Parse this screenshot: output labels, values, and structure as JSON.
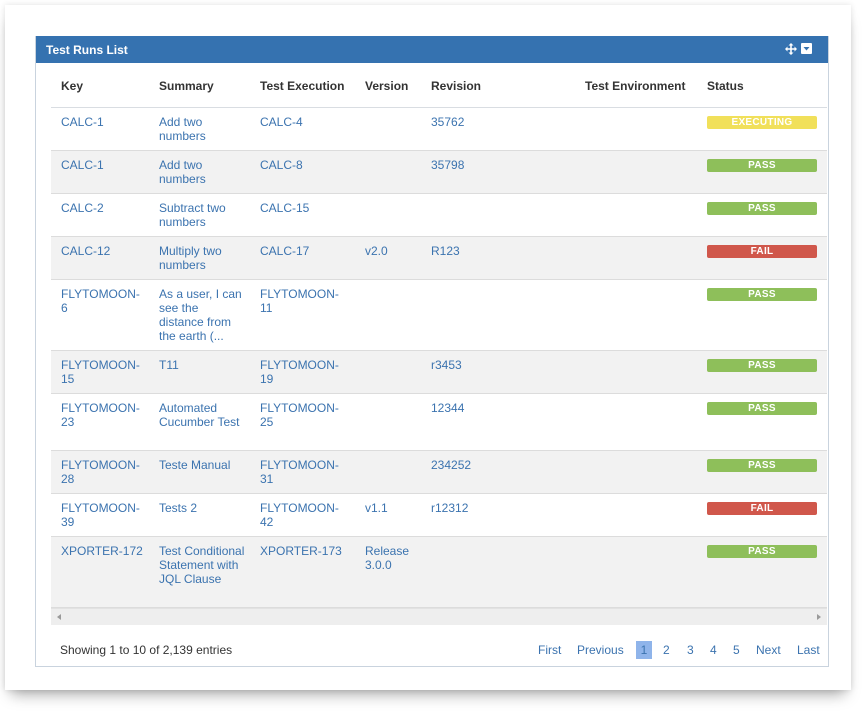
{
  "panel": {
    "title": "Test Runs List"
  },
  "icons": {
    "move": "move-icon",
    "menu": "dropdown-menu-icon"
  },
  "columns": [
    "Key",
    "Summary",
    "Test Execution",
    "Version",
    "Revision",
    "Test Environment",
    "Status"
  ],
  "rows": [
    {
      "key": "CALC-1",
      "summary": "Add two numbers",
      "execution": "CALC-4",
      "version": "",
      "revision": "35762",
      "environment": "",
      "status": "EXECUTING"
    },
    {
      "key": "CALC-1",
      "summary": "Add two numbers",
      "execution": "CALC-8",
      "version": "",
      "revision": "35798",
      "environment": "",
      "status": "PASS"
    },
    {
      "key": "CALC-2",
      "summary": "Subtract two numbers",
      "execution": "CALC-15",
      "version": "",
      "revision": "",
      "environment": "",
      "status": "PASS"
    },
    {
      "key": "CALC-12",
      "summary": "Multiply two numbers",
      "execution": "CALC-17",
      "version": "v2.0",
      "revision": "R123",
      "environment": "",
      "status": "FAIL"
    },
    {
      "key": "FLYTOMOON-6",
      "summary": "As a user, I can see the distance from the earth (...",
      "execution": "FLYTOMOON-11",
      "version": "",
      "revision": "",
      "environment": "",
      "status": "PASS"
    },
    {
      "key": "FLYTOMOON-15",
      "summary": "T11",
      "execution": "FLYTOMOON-19",
      "version": "",
      "revision": "r3453",
      "environment": "",
      "status": "PASS"
    },
    {
      "key": "FLYTOMOON-23",
      "summary": "Automated Cucumber Test",
      "execution": "FLYTOMOON-25",
      "version": "",
      "revision": "12344",
      "environment": "",
      "status": "PASS"
    },
    {
      "key": "FLYTOMOON-28",
      "summary": "Teste Manual",
      "execution": "FLYTOMOON-31",
      "version": "",
      "revision": "234252",
      "environment": "",
      "status": "PASS"
    },
    {
      "key": "FLYTOMOON-39",
      "summary": "Tests 2",
      "execution": "FLYTOMOON-42",
      "version": "v1.1",
      "revision": "r12312",
      "environment": "",
      "status": "FAIL"
    },
    {
      "key": "XPORTER-172",
      "summary": "Test Conditional Statement with JQL Clause",
      "execution": "XPORTER-173",
      "version": "Release 3.0.0",
      "revision": "",
      "environment": "",
      "status": "PASS"
    }
  ],
  "status_colors": {
    "EXECUTING": "#f1e05a",
    "PASS": "#8ebf5a",
    "FAIL": "#d0574b"
  },
  "footer": {
    "info": "Showing 1 to 10 of 2,139 entries",
    "first": "First",
    "previous": "Previous",
    "pages": [
      "1",
      "2",
      "3",
      "4",
      "5"
    ],
    "current_page": "1",
    "next": "Next",
    "last": "Last"
  }
}
